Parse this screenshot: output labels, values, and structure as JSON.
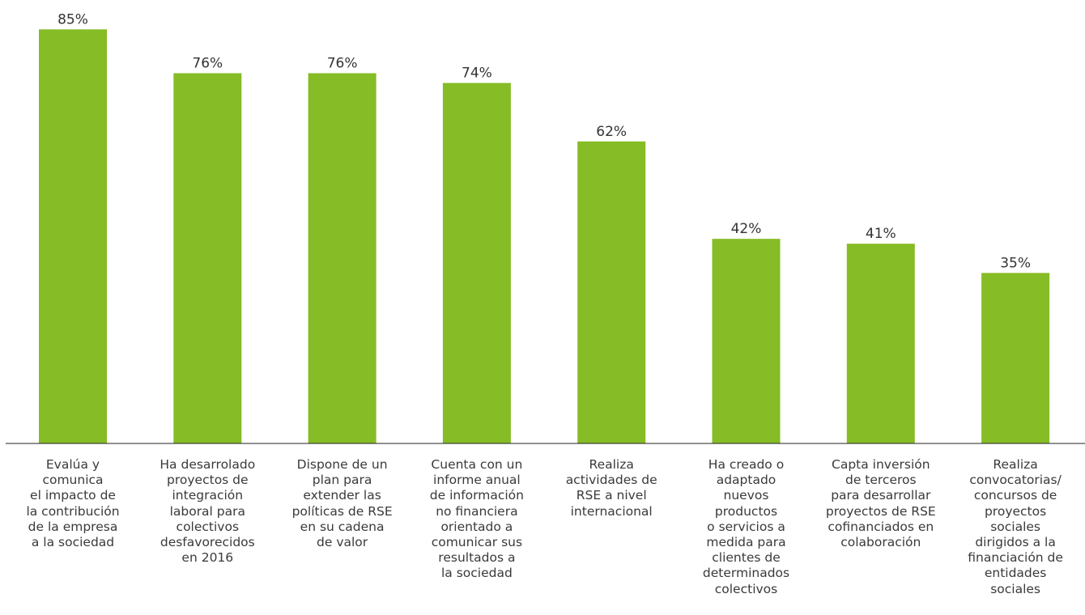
{
  "chart_data": {
    "type": "bar",
    "title": "",
    "xlabel": "",
    "ylabel": "",
    "ylim": [
      0,
      100
    ],
    "grid": false,
    "bar_color": "#86bc25",
    "axis_color": "#222222",
    "text_color": "#333333",
    "categories": [
      "Evalúa y\ncomunica\nel impacto de\nla contribución\nde la empresa\na la sociedad",
      "Ha desarrolado\nproyectos de\nintegración\nlaboral para\ncolectivos\ndesfavorecidos\nen 2016",
      "Dispone de un\nplan para\nextender las\npolíticas de RSE\nen su cadena\nde valor",
      "Cuenta con un\ninforme anual\nde información\nno financiera\norientado a\ncomunicar sus\nresultados a\nla sociedad",
      "Realiza\nactividades de\nRSE a nivel\ninternacional",
      "Ha creado o\nadaptado\nnuevos\nproductos\no servicios a\nmedida para\nclientes de\ndeterminados\ncolectivos",
      "Capta inversión\nde terceros\npara desarrollar\nproyectos de RSE\ncofinanciados en\ncolaboración",
      "Realiza\nconvocatorias/\nconcursos de\nproyectos\nsociales\ndirigidos a la\nfinanciación de\nentidades\nsociales"
    ],
    "values": [
      85,
      76,
      76,
      74,
      62,
      42,
      41,
      35
    ],
    "value_labels": [
      "85%",
      "76%",
      "76%",
      "74%",
      "62%",
      "42%",
      "41%",
      "35%"
    ]
  }
}
